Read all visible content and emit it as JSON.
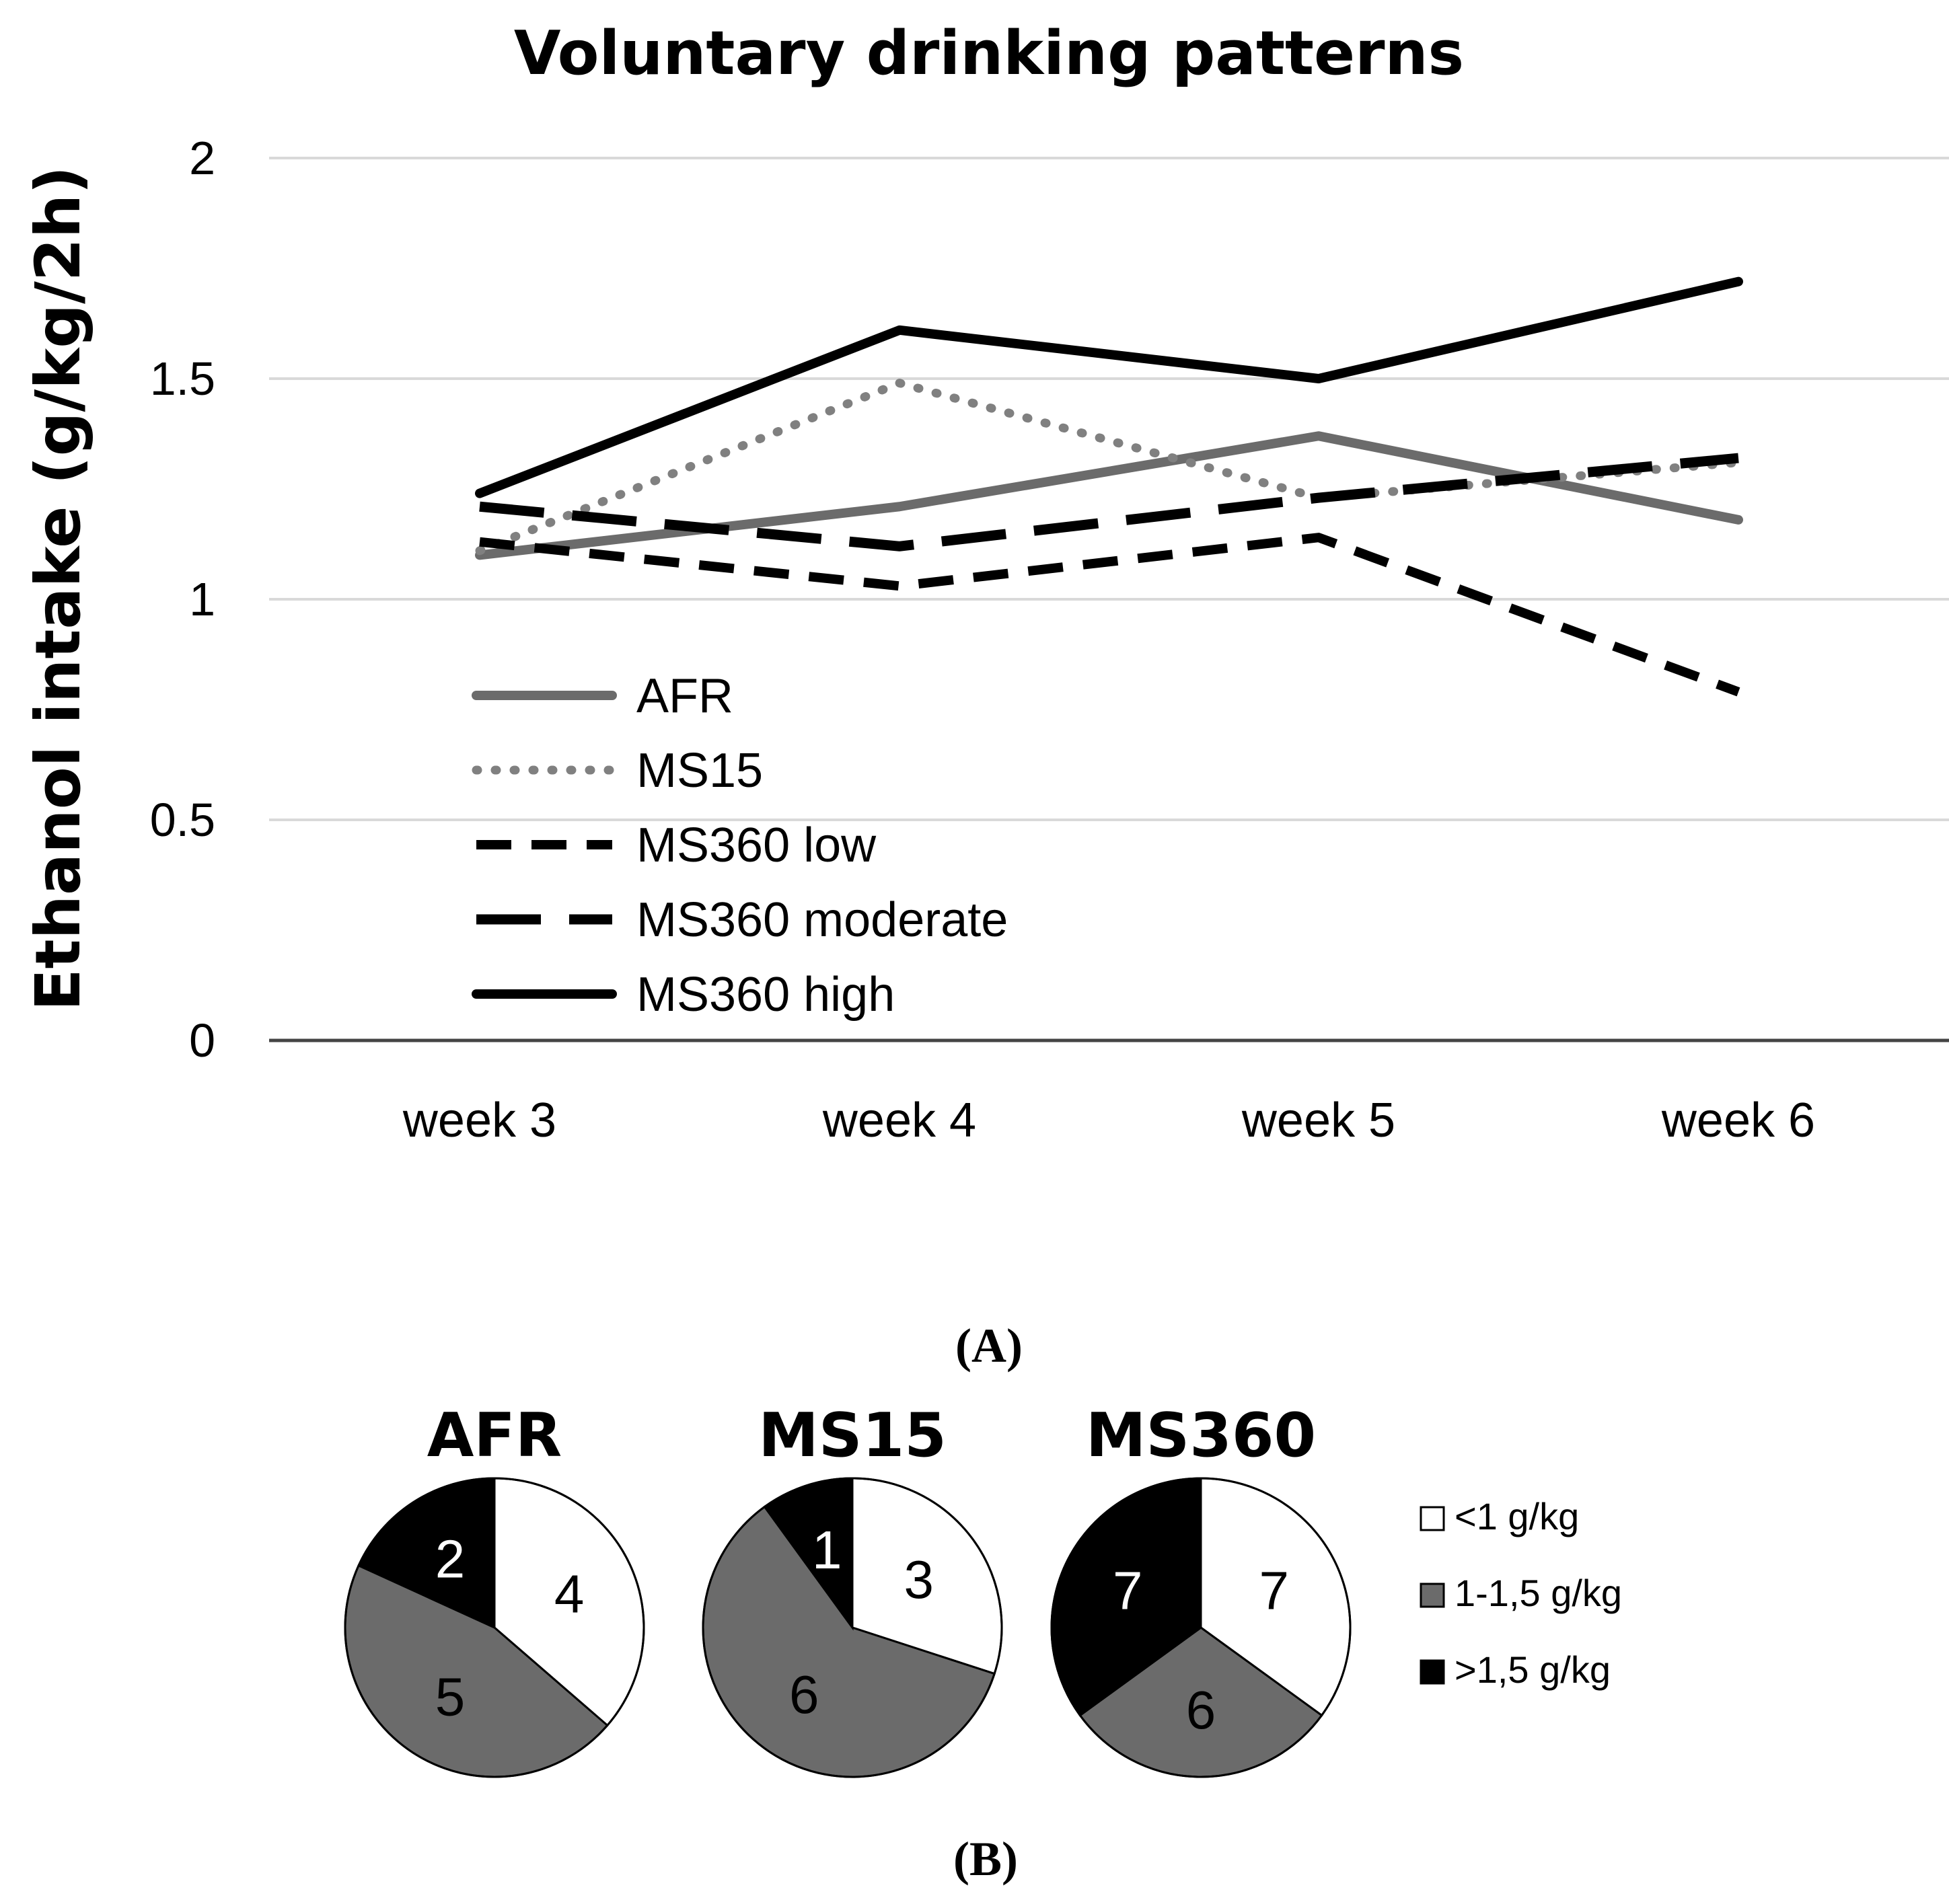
{
  "chart_data": [
    {
      "type": "line",
      "title": "Voluntary drinking patterns",
      "xlabel": "",
      "ylabel": "Ethanol intake (g/kg/2h)",
      "categories": [
        "week 3",
        "week 4",
        "week 5",
        "week 6"
      ],
      "ylim": [
        0,
        2
      ],
      "yticks": [
        "0",
        "0.5",
        "1",
        "1.5",
        "2"
      ],
      "grid": true,
      "legend_position": "bottom-left",
      "series": [
        {
          "name": "AFR",
          "values": [
            1.1,
            1.21,
            1.37,
            1.18
          ],
          "color": "#6b6b6b",
          "style": "solid"
        },
        {
          "name": "MS15",
          "values": [
            1.11,
            1.49,
            1.23,
            1.31
          ],
          "color": "#808080",
          "style": "dotted"
        },
        {
          "name": "MS360 low",
          "values": [
            1.13,
            1.03,
            1.14,
            0.79
          ],
          "color": "#000000",
          "style": "dashed"
        },
        {
          "name": "MS360 moderate",
          "values": [
            1.21,
            1.12,
            1.23,
            1.32
          ],
          "color": "#000000",
          "style": "longdash"
        },
        {
          "name": "MS360 high",
          "values": [
            1.24,
            1.61,
            1.5,
            1.72
          ],
          "color": "#000000",
          "style": "solid"
        }
      ],
      "panel_label": "(A)"
    },
    {
      "type": "pie",
      "categories": [
        "<1 g/kg",
        "1-1,5 g/kg",
        ">1,5 g/kg"
      ],
      "colors": [
        "#ffffff",
        "#6b6b6b",
        "#000000"
      ],
      "label_colors": [
        "#000000",
        "#000000",
        "#ffffff"
      ],
      "charts": [
        {
          "title": "AFR",
          "values": [
            4,
            5,
            2
          ]
        },
        {
          "title": "MS15",
          "values": [
            3,
            6,
            1
          ]
        },
        {
          "title": "MS360",
          "values": [
            7,
            6,
            7
          ]
        }
      ],
      "panel_label": "(B)"
    }
  ]
}
